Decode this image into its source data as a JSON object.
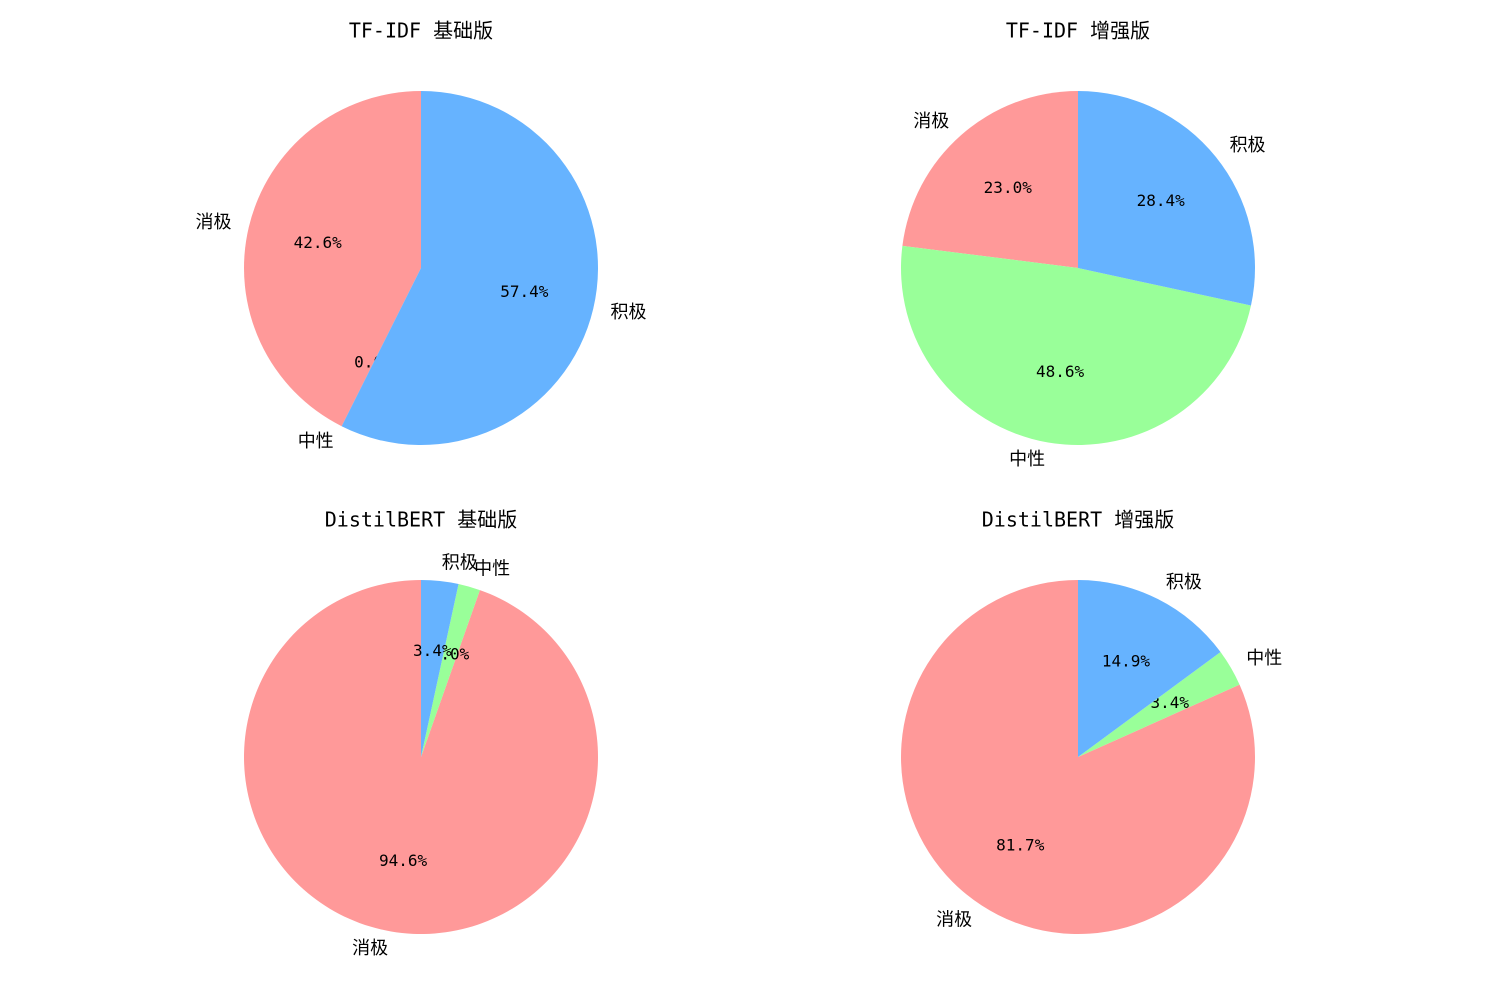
{
  "chart_data": [
    {
      "type": "pie",
      "title": "TF-IDF 基础版",
      "categories": [
        "消极",
        "中性",
        "积极"
      ],
      "values": [
        42.6,
        0.0,
        57.4
      ],
      "percent_labels": [
        "42.6%",
        "0.0%",
        "57.4%"
      ],
      "colors": [
        "#ff9999",
        "#99ff99",
        "#66b3ff"
      ]
    },
    {
      "type": "pie",
      "title": "TF-IDF 增强版",
      "categories": [
        "消极",
        "中性",
        "积极"
      ],
      "values": [
        23.0,
        48.6,
        28.4
      ],
      "percent_labels": [
        "23.0%",
        "48.6%",
        "28.4%"
      ],
      "colors": [
        "#ff9999",
        "#99ff99",
        "#66b3ff"
      ]
    },
    {
      "type": "pie",
      "title": "DistilBERT 基础版",
      "categories": [
        "消极",
        "中性",
        "积极"
      ],
      "values": [
        94.6,
        2.0,
        3.4
      ],
      "percent_labels": [
        "94.6%",
        "2.0%",
        "3.4%"
      ],
      "colors": [
        "#ff9999",
        "#99ff99",
        "#66b3ff"
      ]
    },
    {
      "type": "pie",
      "title": "DistilBERT 增强版",
      "categories": [
        "消极",
        "中性",
        "积极"
      ],
      "values": [
        81.7,
        3.4,
        14.9
      ],
      "percent_labels": [
        "81.7%",
        "3.4%",
        "14.9%"
      ],
      "colors": [
        "#ff9999",
        "#99ff99",
        "#66b3ff"
      ]
    }
  ]
}
